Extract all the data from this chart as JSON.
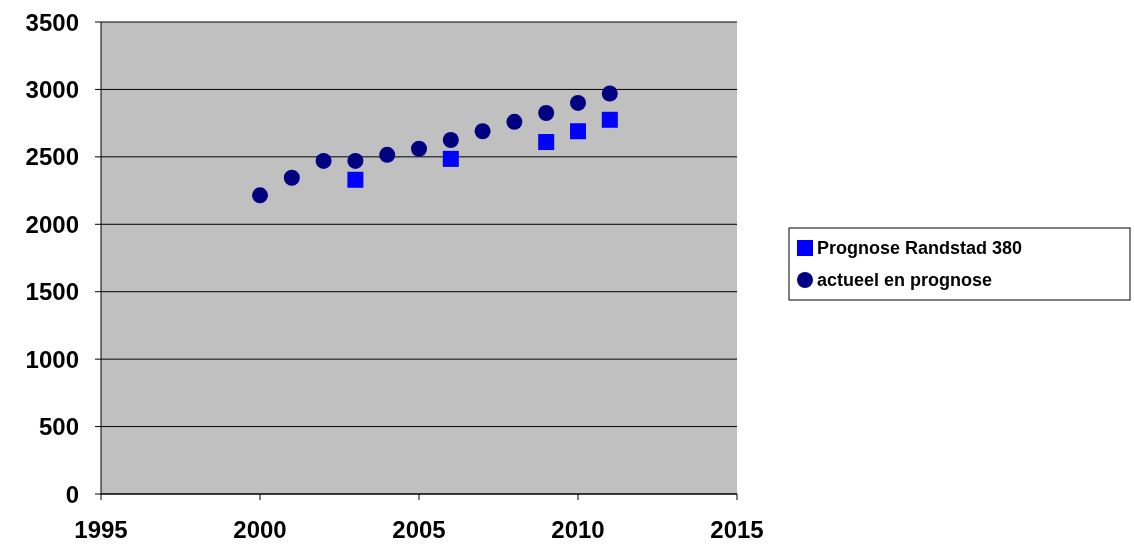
{
  "chart_data": {
    "type": "scatter",
    "xlim": [
      1995,
      2015
    ],
    "xticks": [
      1995,
      2000,
      2005,
      2010,
      2015
    ],
    "ylim": [
      0,
      3500
    ],
    "yticks": [
      0,
      500,
      1000,
      1500,
      2000,
      2500,
      3000,
      3500
    ],
    "grid": "y",
    "legend": "right",
    "series": [
      {
        "name": "Prognose Randstad 380",
        "color": "#0000ff",
        "marker": "square",
        "x": [
          2003,
          2006,
          2009,
          2010,
          2011
        ],
        "values": [
          2330,
          2485,
          2610,
          2690,
          2775
        ]
      },
      {
        "name": "actueel en prognose",
        "color": "#000080",
        "marker": "circle",
        "x": [
          2000,
          2001,
          2002,
          2003,
          2004,
          2005,
          2006,
          2007,
          2008,
          2009,
          2010,
          2011
        ],
        "values": [
          2215,
          2345,
          2470,
          2470,
          2515,
          2560,
          2625,
          2690,
          2760,
          2825,
          2900,
          2970
        ]
      }
    ]
  }
}
